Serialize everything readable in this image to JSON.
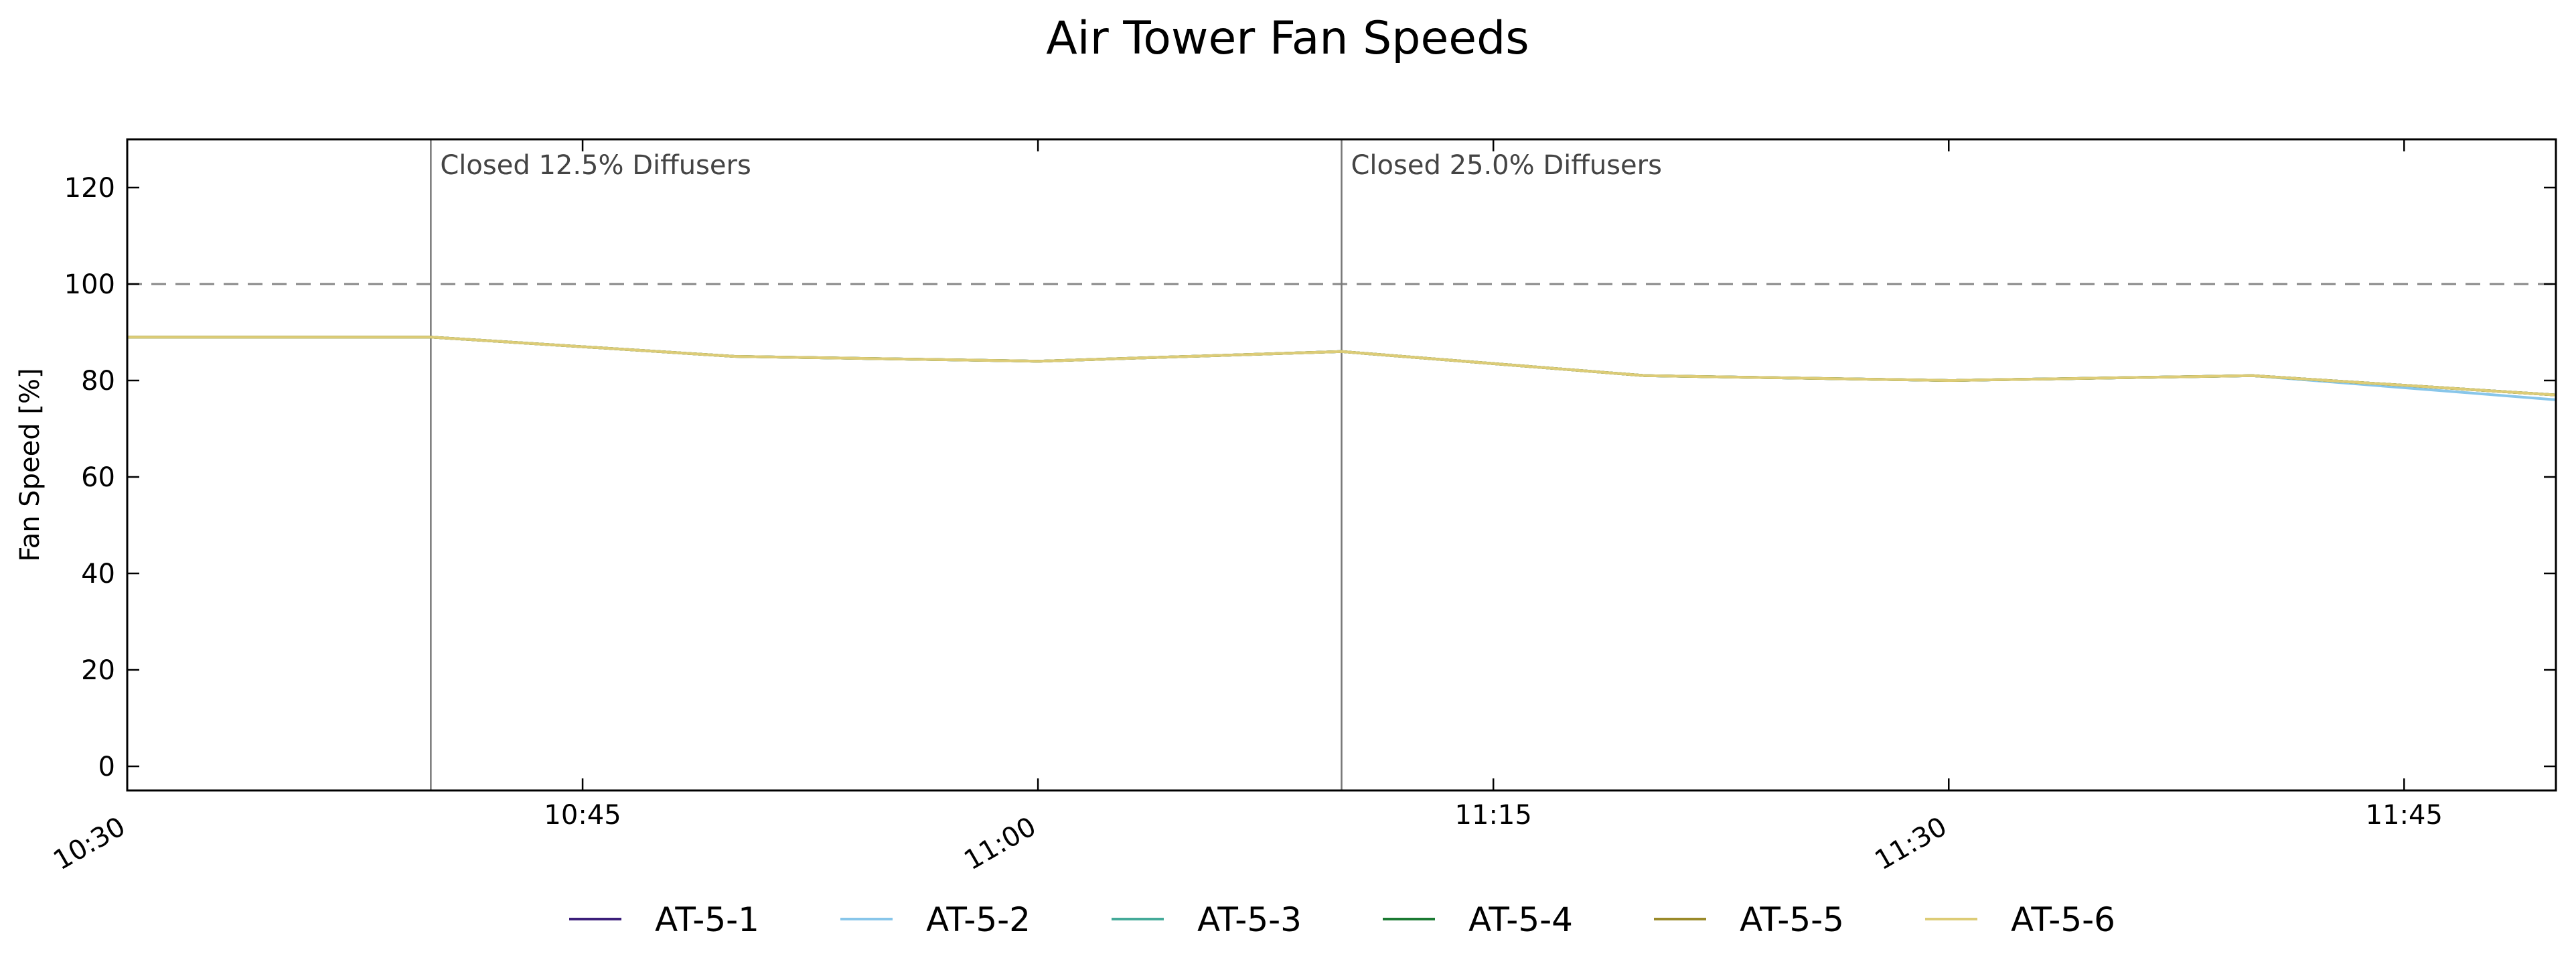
{
  "chart_data": {
    "type": "line",
    "title": "Air Tower Fan Speeds",
    "xlabel": "",
    "ylabel": "Fan Speed [%]",
    "x_ticks": [
      "10:30",
      "10:45",
      "11:00",
      "11:15",
      "11:30",
      "11:45"
    ],
    "y_ticks": [
      0,
      20,
      40,
      60,
      80,
      100,
      120
    ],
    "xlim": [
      "10:30",
      "11:50"
    ],
    "ylim": [
      -5,
      130
    ],
    "grid": false,
    "legend_position": "bottom",
    "x": [
      "10:30",
      "10:40",
      "10:50",
      "11:00",
      "11:10",
      "11:20",
      "11:30",
      "11:40",
      "11:50"
    ],
    "series": [
      {
        "name": "AT-5-1",
        "color": "#3b1f7a",
        "values": [
          89,
          89,
          85,
          84,
          86,
          81,
          80,
          81,
          77
        ]
      },
      {
        "name": "AT-5-2",
        "color": "#88c6ea",
        "values": [
          89,
          89,
          85,
          84,
          86,
          81,
          80,
          81,
          76
        ]
      },
      {
        "name": "AT-5-3",
        "color": "#44aa99",
        "values": [
          89,
          89,
          85,
          84,
          86,
          81,
          80,
          81,
          77
        ]
      },
      {
        "name": "AT-5-4",
        "color": "#1b7a33",
        "values": [
          89,
          89,
          85,
          84,
          86,
          81,
          80,
          81,
          77
        ]
      },
      {
        "name": "AT-5-5",
        "color": "#9a8a2a",
        "values": [
          89,
          89,
          85,
          84,
          86,
          81,
          80,
          81,
          77
        ]
      },
      {
        "name": "AT-5-6",
        "color": "#ddcc77",
        "values": [
          89,
          89,
          85,
          84,
          86,
          81,
          80,
          81,
          77
        ]
      }
    ],
    "reference_line": {
      "y": 100,
      "style": "dashed",
      "color": "#888888"
    },
    "annotations": [
      {
        "x": "10:40",
        "text": "Closed 12.5% Diffusers"
      },
      {
        "x": "11:10",
        "text": "Closed 25.0% Diffusers"
      }
    ]
  }
}
